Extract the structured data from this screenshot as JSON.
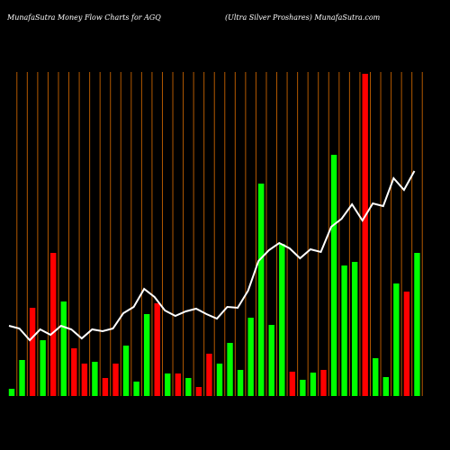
{
  "chart_data": {
    "type": "bar",
    "title": "MunafaSutra  Money Flow  Charts for AGQ",
    "subtitle": "(Ultra  Silver Proshares) MunafaSutra.com",
    "values": [
      8,
      40,
      98,
      62,
      159,
      105,
      53,
      36,
      38,
      20,
      36,
      56,
      16,
      91,
      103,
      25,
      25,
      20,
      10,
      47,
      36,
      59,
      29,
      87,
      236,
      79,
      169,
      27,
      18,
      26,
      29,
      268,
      145,
      149,
      358,
      42,
      21,
      125,
      116,
      159
    ],
    "colors": [
      "#00ff00",
      "#00ff00",
      "#ff0000",
      "#00ff00",
      "#ff0000",
      "#00ff00",
      "#ff0000",
      "#ff0000",
      "#00ff00",
      "#ff0000",
      "#ff0000",
      "#00ff00",
      "#00ff00",
      "#00ff00",
      "#ff0000",
      "#00ff00",
      "#ff0000",
      "#00ff00",
      "#ff0000",
      "#ff0000",
      "#00ff00",
      "#00ff00",
      "#00ff00",
      "#00ff00",
      "#00ff00",
      "#00ff00",
      "#00ff00",
      "#ff0000",
      "#00ff00",
      "#00ff00",
      "#ff0000",
      "#00ff00",
      "#00ff00",
      "#00ff00",
      "#ff0000",
      "#00ff00",
      "#00ff00",
      "#00ff00",
      "#ff0000",
      "#00ff00"
    ],
    "line_values": [
      78,
      75,
      62,
      74,
      68,
      78,
      74,
      64,
      74,
      72,
      75,
      92,
      99,
      119,
      110,
      95,
      89,
      94,
      97,
      91,
      86,
      99,
      98,
      117,
      150,
      162,
      170,
      164,
      153,
      163,
      160,
      188,
      197,
      213,
      195,
      214,
      211,
      242,
      229,
      250
    ],
    "line_color": "#ffffff",
    "ylim": [
      0,
      360
    ],
    "grid_color": "#b35900"
  }
}
